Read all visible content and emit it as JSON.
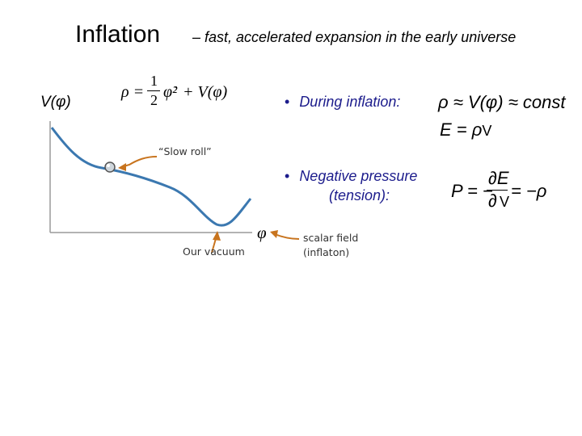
{
  "slide": {
    "title": "Inflation",
    "subtitle": "– fast, accelerated expansion in the early universe"
  },
  "equations": {
    "rho_def": {
      "lhs": "ρ =",
      "frac_num": "1",
      "frac_den": "2",
      "phi_dot_sq": "φ̇²",
      "rhs": "+ V(φ)"
    },
    "rho_const": "ρ ≈ V(φ) ≈ const",
    "energy_main": "E = ρ",
    "energy_suffix": "V",
    "pressure_lhs": "P = −",
    "pressure_num": "∂E",
    "pressure_den": "∂",
    "pressure_den_suffix": "V",
    "pressure_rhs": "= −ρ"
  },
  "bullets": [
    {
      "symbol": "•",
      "text": "During inflation:"
    },
    {
      "symbol": "•",
      "text_line1": "Negative pressure",
      "text_line2": "(tension):"
    }
  ],
  "plot": {
    "y_axis_label": "V(φ)",
    "x_axis_label": "φ",
    "annotations": {
      "slow_roll": "“Slow roll”",
      "vacuum": "Our vacuum",
      "field_line1": "scalar field",
      "field_line2": "(inflaton)"
    },
    "colors": {
      "curve": "#3b78b0",
      "arrow": "#c8741e",
      "axis": "#9a9a9a",
      "bullet_text": "#1c1c8c"
    }
  }
}
